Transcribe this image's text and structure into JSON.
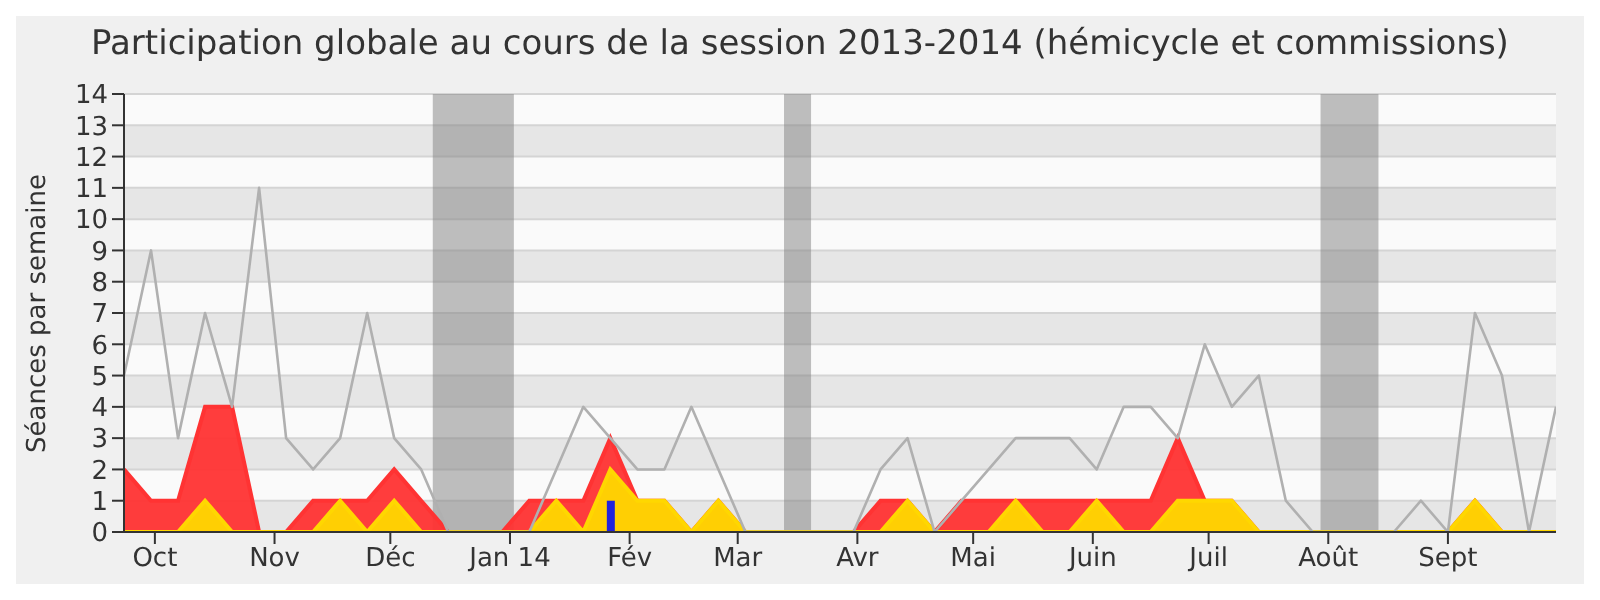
{
  "chart_data": {
    "type": "area",
    "title": "Participation globale au cours de la session 2013-2014 (hémicycle et commissions)",
    "ylabel": "Séances par semaine",
    "x": [
      "2013-09-23",
      "2013-09-30",
      "2013-10-07",
      "2013-10-14",
      "2013-10-21",
      "2013-10-28",
      "2013-11-04",
      "2013-11-11",
      "2013-11-18",
      "2013-11-25",
      "2013-12-02",
      "2013-12-09",
      "2013-12-16",
      "2013-12-23",
      "2013-12-30",
      "2014-01-06",
      "2014-01-13",
      "2014-01-20",
      "2014-01-27",
      "2014-02-03",
      "2014-02-10",
      "2014-02-17",
      "2014-02-24",
      "2014-03-03",
      "2014-03-10",
      "2014-03-17",
      "2014-03-24",
      "2014-03-31",
      "2014-04-07",
      "2014-04-14",
      "2014-04-21",
      "2014-04-28",
      "2014-05-05",
      "2014-05-12",
      "2014-05-19",
      "2014-05-26",
      "2014-06-02",
      "2014-06-09",
      "2014-06-16",
      "2014-06-23",
      "2014-06-30",
      "2014-07-07",
      "2014-07-14",
      "2014-07-21",
      "2014-07-28",
      "2014-08-04",
      "2014-08-11",
      "2014-08-18",
      "2014-08-25",
      "2014-09-01",
      "2014-09-08",
      "2014-09-15",
      "2014-09-22",
      "2014-09-29"
    ],
    "series": [
      {
        "color": "#ff3333",
        "values": [
          2,
          1,
          1,
          4,
          4,
          0,
          0,
          1,
          1,
          1,
          2,
          1,
          0,
          0,
          0,
          1,
          1,
          1,
          3,
          1,
          1,
          0,
          1,
          0,
          0,
          0,
          0,
          0,
          1,
          1,
          0,
          1,
          1,
          1,
          1,
          1,
          1,
          1,
          1,
          3,
          1,
          1,
          0,
          0,
          0,
          0,
          0,
          0,
          0,
          0,
          1,
          0,
          0,
          0
        ]
      },
      {
        "color": "#ffd700",
        "values": [
          0,
          0,
          0,
          1,
          0,
          0,
          0,
          0,
          1,
          0,
          1,
          0,
          0,
          0,
          0,
          0,
          1,
          0,
          2,
          1,
          1,
          0,
          1,
          0,
          0,
          0,
          0,
          0,
          0,
          1,
          0,
          0,
          0,
          1,
          0,
          0,
          1,
          0,
          0,
          1,
          1,
          1,
          0,
          0,
          0,
          0,
          0,
          0,
          0,
          0,
          1,
          0,
          0,
          0
        ]
      },
      {
        "type": "line",
        "color": "#b0b0b0",
        "values": [
          5,
          9,
          3,
          7,
          4,
          11,
          3,
          2,
          3,
          7,
          3,
          2,
          0,
          0,
          0,
          0,
          2,
          4,
          3,
          2,
          2,
          4,
          2,
          0,
          0,
          0,
          0,
          0,
          2,
          3,
          0,
          1,
          2,
          3,
          3,
          3,
          2,
          4,
          4,
          3,
          6,
          4,
          5,
          1,
          0,
          0,
          0,
          0,
          1,
          0,
          7,
          5,
          0,
          4
        ]
      },
      {
        "type": "bar",
        "color": "#2222dd",
        "values": [
          null,
          null,
          null,
          null,
          null,
          null,
          null,
          null,
          null,
          null,
          null,
          null,
          null,
          null,
          null,
          null,
          null,
          null,
          1,
          null,
          null,
          null,
          null,
          null,
          null,
          null,
          null,
          null,
          null,
          null,
          null,
          null,
          null,
          null,
          null,
          null,
          null,
          null,
          null,
          null,
          null,
          null,
          null,
          null,
          null,
          null,
          null,
          null,
          null,
          null,
          null,
          null,
          null,
          null
        ]
      }
    ],
    "xlim": [
      "2013-09-23",
      "2014-09-29"
    ],
    "xticks": [
      {
        "value": "2013-10-01",
        "label": "Oct"
      },
      {
        "value": "2013-11-01",
        "label": "Nov"
      },
      {
        "value": "2013-12-01",
        "label": "Déc"
      },
      {
        "value": "2014-01-01",
        "label": "Jan 14"
      },
      {
        "value": "2014-02-01",
        "label": "Fév"
      },
      {
        "value": "2014-03-01",
        "label": "Mar"
      },
      {
        "value": "2014-04-01",
        "label": "Avr"
      },
      {
        "value": "2014-05-01",
        "label": "Mai"
      },
      {
        "value": "2014-06-01",
        "label": "Juin"
      },
      {
        "value": "2014-07-01",
        "label": "Juil"
      },
      {
        "value": "2014-08-01",
        "label": "Août"
      },
      {
        "value": "2014-09-01",
        "label": "Sept"
      }
    ],
    "ylim": [
      0,
      14
    ],
    "yticks": [
      0,
      1,
      2,
      3,
      4,
      5,
      6,
      7,
      8,
      9,
      10,
      11,
      12,
      13,
      14
    ],
    "bands": [
      {
        "axis": "x",
        "from": "2013-12-12",
        "to": "2014-01-02",
        "color": "#808080"
      },
      {
        "axis": "x",
        "from": "2014-03-13",
        "to": "2014-03-20",
        "color": "#808080"
      },
      {
        "axis": "x",
        "from": "2014-07-30",
        "to": "2014-08-14",
        "color": "#808080"
      }
    ],
    "grid": "y",
    "legend": false,
    "marker": "none"
  }
}
